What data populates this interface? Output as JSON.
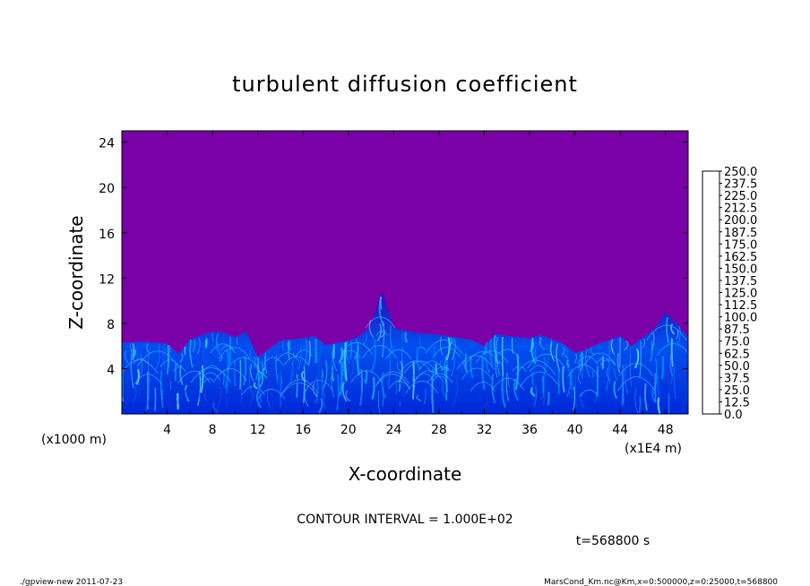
{
  "chart_data": {
    "type": "heatmap",
    "title": "turbulent diffusion coefficient",
    "xlabel": "X-coordinate",
    "ylabel": "Z-coordinate",
    "x_unit_left": "(x1000 m)",
    "x_unit_right": "(x1E4 m)",
    "xlim": [
      0,
      50
    ],
    "ylim": [
      0,
      25
    ],
    "xticks": [
      "4",
      "8",
      "12",
      "16",
      "20",
      "24",
      "28",
      "32",
      "36",
      "40",
      "44",
      "48"
    ],
    "yticks": [
      "4",
      "8",
      "12",
      "16",
      "20",
      "24"
    ],
    "background_value_color": "#7a00a8",
    "mixed_layer_top_profile": [
      [
        0,
        6.3
      ],
      [
        2,
        6.4
      ],
      [
        4,
        6.2
      ],
      [
        5,
        5.3
      ],
      [
        6,
        6.6
      ],
      [
        8,
        7.3
      ],
      [
        9,
        7.2
      ],
      [
        10,
        6.8
      ],
      [
        11,
        7.3
      ],
      [
        12,
        5.0
      ],
      [
        14,
        6.5
      ],
      [
        16,
        6.7
      ],
      [
        17,
        6.9
      ],
      [
        18,
        6.1
      ],
      [
        19,
        6.3
      ],
      [
        20,
        6.5
      ],
      [
        21,
        6.9
      ],
      [
        22,
        7.8
      ],
      [
        22.5,
        9.5
      ],
      [
        23,
        10.8
      ],
      [
        23.5,
        9.2
      ],
      [
        24,
        7.6
      ],
      [
        26,
        7.2
      ],
      [
        28,
        7.0
      ],
      [
        30,
        6.7
      ],
      [
        31,
        6.5
      ],
      [
        32,
        6.0
      ],
      [
        33,
        7.1
      ],
      [
        34,
        6.9
      ],
      [
        36,
        6.7
      ],
      [
        37,
        7.0
      ],
      [
        38,
        6.6
      ],
      [
        39,
        6.2
      ],
      [
        40,
        5.4
      ],
      [
        41,
        5.7
      ],
      [
        42,
        6.2
      ],
      [
        43,
        6.5
      ],
      [
        44,
        6.9
      ],
      [
        45,
        6.0
      ],
      [
        46,
        6.8
      ],
      [
        47,
        7.5
      ],
      [
        48,
        9.0
      ],
      [
        49,
        8.0
      ],
      [
        50,
        6.8
      ]
    ],
    "colorbar": {
      "levels": [
        "250.0",
        "237.5",
        "225.0",
        "212.5",
        "200.0",
        "187.5",
        "175.0",
        "162.5",
        "150.0",
        "137.5",
        "125.0",
        "112.5",
        "100.0",
        "87.5",
        "75.0",
        "62.5",
        "50.0",
        "37.5",
        "25.0",
        "12.5",
        "0.0"
      ],
      "colors": [
        "#f08a8a",
        "#f25a5a",
        "#ef2a2a",
        "#e81010",
        "#ff5a00",
        "#ff9200",
        "#ffc800",
        "#f0e800",
        "#c8ff00",
        "#90ff20",
        "#40ff30",
        "#00e840",
        "#00d278",
        "#00e8c0",
        "#00e8ff",
        "#00b0ff",
        "#0070ff",
        "#0040e0",
        "#0018c0",
        "#2a00a8",
        "#7a00a8"
      ]
    },
    "contour_interval_text": "CONTOUR INTERVAL = 1.000E+02",
    "time_text": "t=568800 s",
    "footer_left": "./gpview-new  2011-07-23",
    "footer_right": "MarsCond_Km.nc@Km,x=0:500000,z=0:25000,t=568800"
  }
}
